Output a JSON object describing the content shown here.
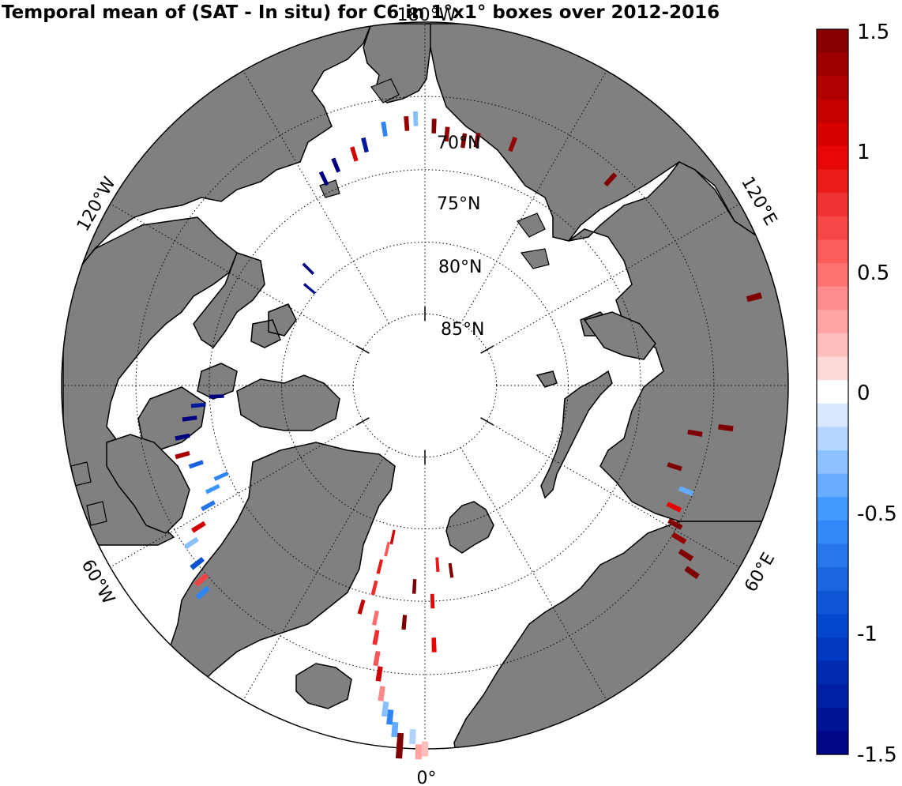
{
  "title": "Temporal mean of (SAT - In situ) for C6 in 1°x1° boxes over 2012-2016",
  "map": {
    "projection": "north polar stereographic",
    "land_color": "#808080",
    "ocean_color": "#ffffff",
    "latitude_labels": [
      "70°N",
      "75°N",
      "80°N",
      "85°N"
    ],
    "longitude_labels": {
      "top": "180°W",
      "left_upper": "120°W",
      "left_lower": "60°W",
      "bottom": "0°",
      "right_lower": "60°E",
      "right_upper": "120°E"
    }
  },
  "colorbar": {
    "min": -1.5,
    "max": 1.5,
    "levels": 31,
    "tick_labels": [
      "1.5",
      "1",
      "0.5",
      "0",
      "-0.5",
      "-1",
      "-1.5"
    ],
    "high_color": "#7f0000",
    "low_color": "#00007f"
  },
  "anomaly_boxes": [
    {
      "lat": 72.0,
      "lon": 178,
      "value": 1.5
    },
    {
      "lat": 72.5,
      "lon": 175,
      "value": 1.4
    },
    {
      "lat": 72.8,
      "lon": 171,
      "value": 1.5
    },
    {
      "lat": 72.6,
      "lon": 168,
      "value": 1.5
    },
    {
      "lat": 72.2,
      "lon": 160,
      "value": 1.4
    },
    {
      "lat": 71.5,
      "lon": -178,
      "value": -0.3
    },
    {
      "lat": 71.8,
      "lon": -176,
      "value": 1.4
    },
    {
      "lat": 72.0,
      "lon": -171,
      "value": -0.6
    },
    {
      "lat": 72.8,
      "lon": -166,
      "value": -1.3
    },
    {
      "lat": 73.2,
      "lon": -163,
      "value": 1.1
    },
    {
      "lat": 73.5,
      "lon": -158,
      "value": -1.5
    },
    {
      "lat": 74.0,
      "lon": -154,
      "value": -1.5
    },
    {
      "lat": 78.5,
      "lon": -135,
      "value": -1.5
    },
    {
      "lat": 79.5,
      "lon": -130,
      "value": -1.4
    },
    {
      "lat": 70.8,
      "lon": 138,
      "value": 1.5
    },
    {
      "lat": 66.5,
      "lon": 105,
      "value": 1.5
    },
    {
      "lat": 69.0,
      "lon": 82,
      "value": 1.5
    },
    {
      "lat": 71.0,
      "lon": 80,
      "value": 1.5
    },
    {
      "lat": 71.8,
      "lon": 72,
      "value": 1.5
    },
    {
      "lat": 70.5,
      "lon": 68,
      "value": -0.4
    },
    {
      "lat": 70.8,
      "lon": 64,
      "value": 1.0
    },
    {
      "lat": 70.2,
      "lon": 61,
      "value": 1.5
    },
    {
      "lat": 69.5,
      "lon": 59,
      "value": 1.4
    },
    {
      "lat": 68.5,
      "lon": 57,
      "value": 1.5
    },
    {
      "lat": 67.5,
      "lon": 55,
      "value": 1.5
    },
    {
      "lat": 75.5,
      "lon": -87,
      "value": -1.5
    },
    {
      "lat": 74.2,
      "lon": -85,
      "value": -1.3
    },
    {
      "lat": 73.5,
      "lon": -82,
      "value": -1.5
    },
    {
      "lat": 72.8,
      "lon": -78,
      "value": -1.5
    },
    {
      "lat": 72.5,
      "lon": -74,
      "value": 1.3
    },
    {
      "lat": 73.2,
      "lon": -71,
      "value": -0.8
    },
    {
      "lat": 74.5,
      "lon": -66,
      "value": -0.6
    },
    {
      "lat": 73.6,
      "lon": -64,
      "value": -0.5
    },
    {
      "lat": 72.8,
      "lon": -61,
      "value": -0.7
    },
    {
      "lat": 71.5,
      "lon": -58,
      "value": 1.1
    },
    {
      "lat": 70.5,
      "lon": -56,
      "value": -0.3
    },
    {
      "lat": 70.0,
      "lon": -52,
      "value": -0.9
    },
    {
      "lat": 69.5,
      "lon": -49,
      "value": 0.7
    },
    {
      "lat": 69.0,
      "lon": -47,
      "value": -0.6
    },
    {
      "lat": 77.0,
      "lon": 8,
      "value": 1.5
    },
    {
      "lat": 77.5,
      "lon": 4,
      "value": 0.9
    },
    {
      "lat": 76.0,
      "lon": -3,
      "value": 1.5
    },
    {
      "lat": 73.5,
      "lon": -5,
      "value": 1.5
    },
    {
      "lat": 75.0,
      "lon": 2,
      "value": 1.0
    },
    {
      "lat": 72.0,
      "lon": 2,
      "value": 1.0
    },
    {
      "lat": 79.2,
      "lon": -12,
      "value": 1.1
    },
    {
      "lat": 78.3,
      "lon": -13,
      "value": 0.6
    },
    {
      "lat": 77.0,
      "lon": -14,
      "value": 0.9
    },
    {
      "lat": 75.5,
      "lon": -14,
      "value": 0.8
    },
    {
      "lat": 74.0,
      "lon": -16,
      "value": 1.2
    },
    {
      "lat": 73.5,
      "lon": -12,
      "value": 0.5
    },
    {
      "lat": 72.2,
      "lon": -11,
      "value": 0.8
    },
    {
      "lat": 70.8,
      "lon": -10,
      "value": 0.6
    },
    {
      "lat": 69.8,
      "lon": -9,
      "value": 1.1
    },
    {
      "lat": 68.5,
      "lon": -8,
      "value": 0.4
    },
    {
      "lat": 67.5,
      "lon": -7,
      "value": -0.3
    },
    {
      "lat": 67.0,
      "lon": -6,
      "value": -0.6
    },
    {
      "lat": 66.2,
      "lon": -5,
      "value": -0.4
    },
    {
      "lat": 65.8,
      "lon": -2,
      "value": -0.2
    },
    {
      "lat": 65.5,
      "lon": -4,
      "value": 1.5
    },
    {
      "lat": 64.8,
      "lon": -4,
      "value": 1.5
    },
    {
      "lat": 64.8,
      "lon": -1,
      "value": 0.3
    },
    {
      "lat": 65.0,
      "lon": 0,
      "value": 0.2
    }
  ]
}
